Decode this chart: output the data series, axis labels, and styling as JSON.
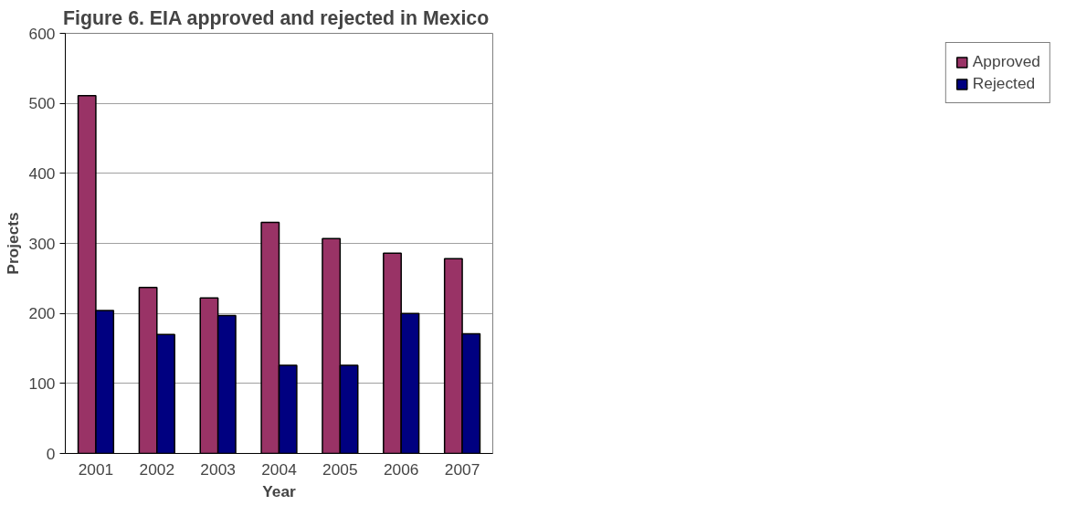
{
  "chart_data": {
    "type": "bar",
    "title": "Figure 6.  EIA approved and rejected in Mexico",
    "xlabel": "Year",
    "ylabel": "Projects",
    "categories": [
      "2001",
      "2002",
      "2003",
      "2004",
      "2005",
      "2006",
      "2007"
    ],
    "series": [
      {
        "name": "Approved",
        "color": "#993366",
        "values": [
          511,
          237,
          222,
          330,
          307,
          286,
          278
        ]
      },
      {
        "name": "Rejected",
        "color": "#000080",
        "values": [
          204,
          170,
          197,
          126,
          126,
          200,
          171
        ]
      }
    ],
    "ylim": [
      0,
      600
    ],
    "yticks": [
      0,
      100,
      200,
      300,
      400,
      500,
      600
    ],
    "grid": "y",
    "legend": "right"
  }
}
